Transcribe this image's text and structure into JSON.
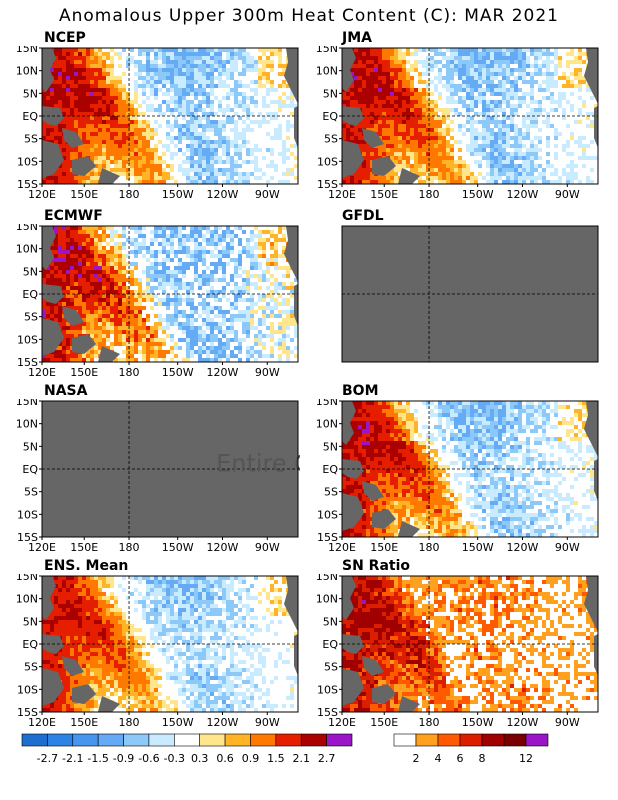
{
  "title": "Anomalous Upper 300m Heat Content (C): MAR 2021",
  "panels": [
    {
      "name": "NCEP",
      "available": true
    },
    {
      "name": "JMA",
      "available": true
    },
    {
      "name": "ECMWF",
      "available": true
    },
    {
      "name": "GFDL",
      "available": false
    },
    {
      "name": "NASA",
      "available": false,
      "note": "Entire Gr"
    },
    {
      "name": "BOM",
      "available": true
    },
    {
      "name": "ENS. Mean",
      "available": true
    },
    {
      "name": "SN Ratio",
      "available": true
    }
  ],
  "axes": {
    "lat_ticks": [
      "15N",
      "10N",
      "5N",
      "EQ",
      "5S",
      "10S",
      "15S"
    ],
    "lon_ticks": [
      "120E",
      "150E",
      "180",
      "150W",
      "120W",
      "90W"
    ]
  },
  "colors": {
    "land": "#666666",
    "missing": "#666666"
  },
  "legend_anomaly": {
    "labels": [
      "-2.7",
      "-2.1",
      "-1.5",
      "-0.9",
      "-0.6",
      "-0.3",
      "0.3",
      "0.6",
      "0.9",
      "1.5",
      "2.1",
      "2.7"
    ],
    "colors": [
      "#1e6ed2",
      "#2d82e6",
      "#4696f0",
      "#64aaf5",
      "#8cc8f8",
      "#c8ebff",
      "#ffffff",
      "#ffe68c",
      "#ffb428",
      "#ff7800",
      "#e61e00",
      "#aa0000",
      "#7a0000",
      "#9a14c8"
    ]
  },
  "legend_sn": {
    "labels": [
      "2",
      "4",
      "6",
      "8",
      "12"
    ],
    "colors": [
      "#ffffff",
      "#ffa01e",
      "#ff5a00",
      "#dc1e00",
      "#a00000",
      "#7a0000",
      "#9a14c8"
    ]
  },
  "chart_data": {
    "type": "heatmap",
    "title": "Anomalous Upper 300m Heat Content (C): MAR 2021",
    "x_range": [
      "120E",
      "70W"
    ],
    "y_range": [
      "15S",
      "15N"
    ],
    "description_units": "C",
    "panels": [
      "NCEP",
      "JMA",
      "ECMWF",
      "GFDL",
      "NASA",
      "BOM",
      "ENS. Mean",
      "SN Ratio"
    ]
  }
}
